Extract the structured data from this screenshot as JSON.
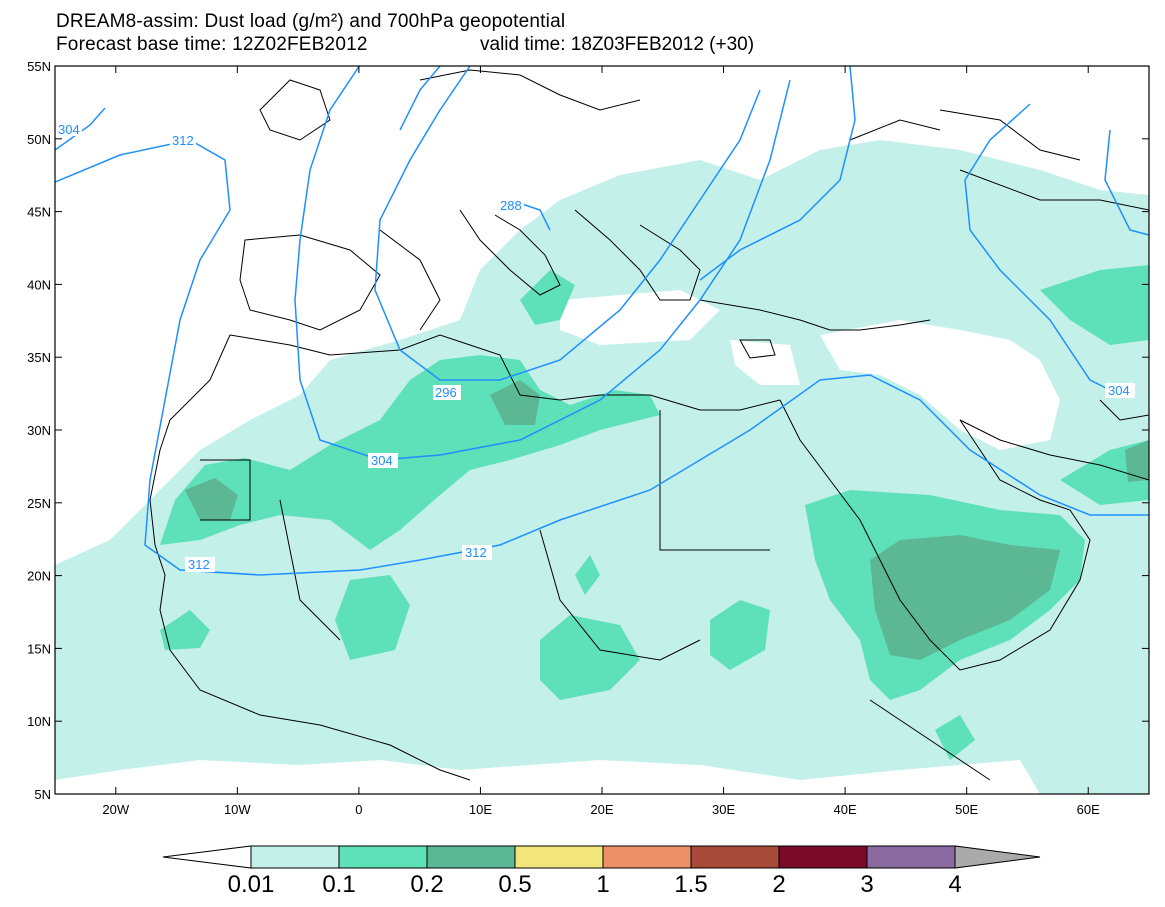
{
  "title_line1": "DREAM8-assim: Dust load (g/m²) and 700hPa geopotential",
  "title_line2a": "Forecast base time: 12Z02FEB2012",
  "title_line2b": "valid time: 18Z03FEB2012 (+30)",
  "lat_ticks": [
    "55N",
    "50N",
    "45N",
    "40N",
    "35N",
    "30N",
    "25N",
    "20N",
    "15N",
    "10N",
    "5N"
  ],
  "lon_ticks": [
    "20W",
    "10W",
    "0",
    "10E",
    "20E",
    "30E",
    "40E",
    "50E",
    "60E"
  ],
  "colorbar": {
    "labels": [
      "0.01",
      "0.1",
      "0.2",
      "0.5",
      "1",
      "1.5",
      "2",
      "3",
      "4"
    ],
    "colors": [
      "#c4f0ea",
      "#5ee0b8",
      "#5cb894",
      "#f2e67a",
      "#eb9068",
      "#a84a3a",
      "#7a0a2a",
      "#8a6aa0"
    ],
    "min_color": "#ffffff",
    "max_color": "#aaaaaa"
  },
  "contour_labels": [
    "304",
    "312",
    "288",
    "296",
    "304",
    "312",
    "312",
    "304"
  ],
  "colors": {
    "contour": "#1e90ff",
    "coast": "#000000"
  },
  "chart_data": {
    "type": "heatmap",
    "title": "DREAM8-assim: Dust load (g/m²) and 700hPa geopotential",
    "xlim": [
      -25,
      65
    ],
    "ylim": [
      5,
      55
    ],
    "x_ticks": [
      "20W",
      "10W",
      "0",
      "10E",
      "20E",
      "30E",
      "40E",
      "50E",
      "60E"
    ],
    "y_ticks": [
      "55N",
      "50N",
      "45N",
      "40N",
      "35N",
      "30N",
      "25N",
      "20N",
      "15N",
      "10N",
      "5N"
    ],
    "levels": [
      0.01,
      0.1,
      0.2,
      0.5,
      1,
      1.5,
      2,
      3,
      4
    ],
    "contour_levels": [
      288,
      296,
      304,
      312
    ]
  }
}
